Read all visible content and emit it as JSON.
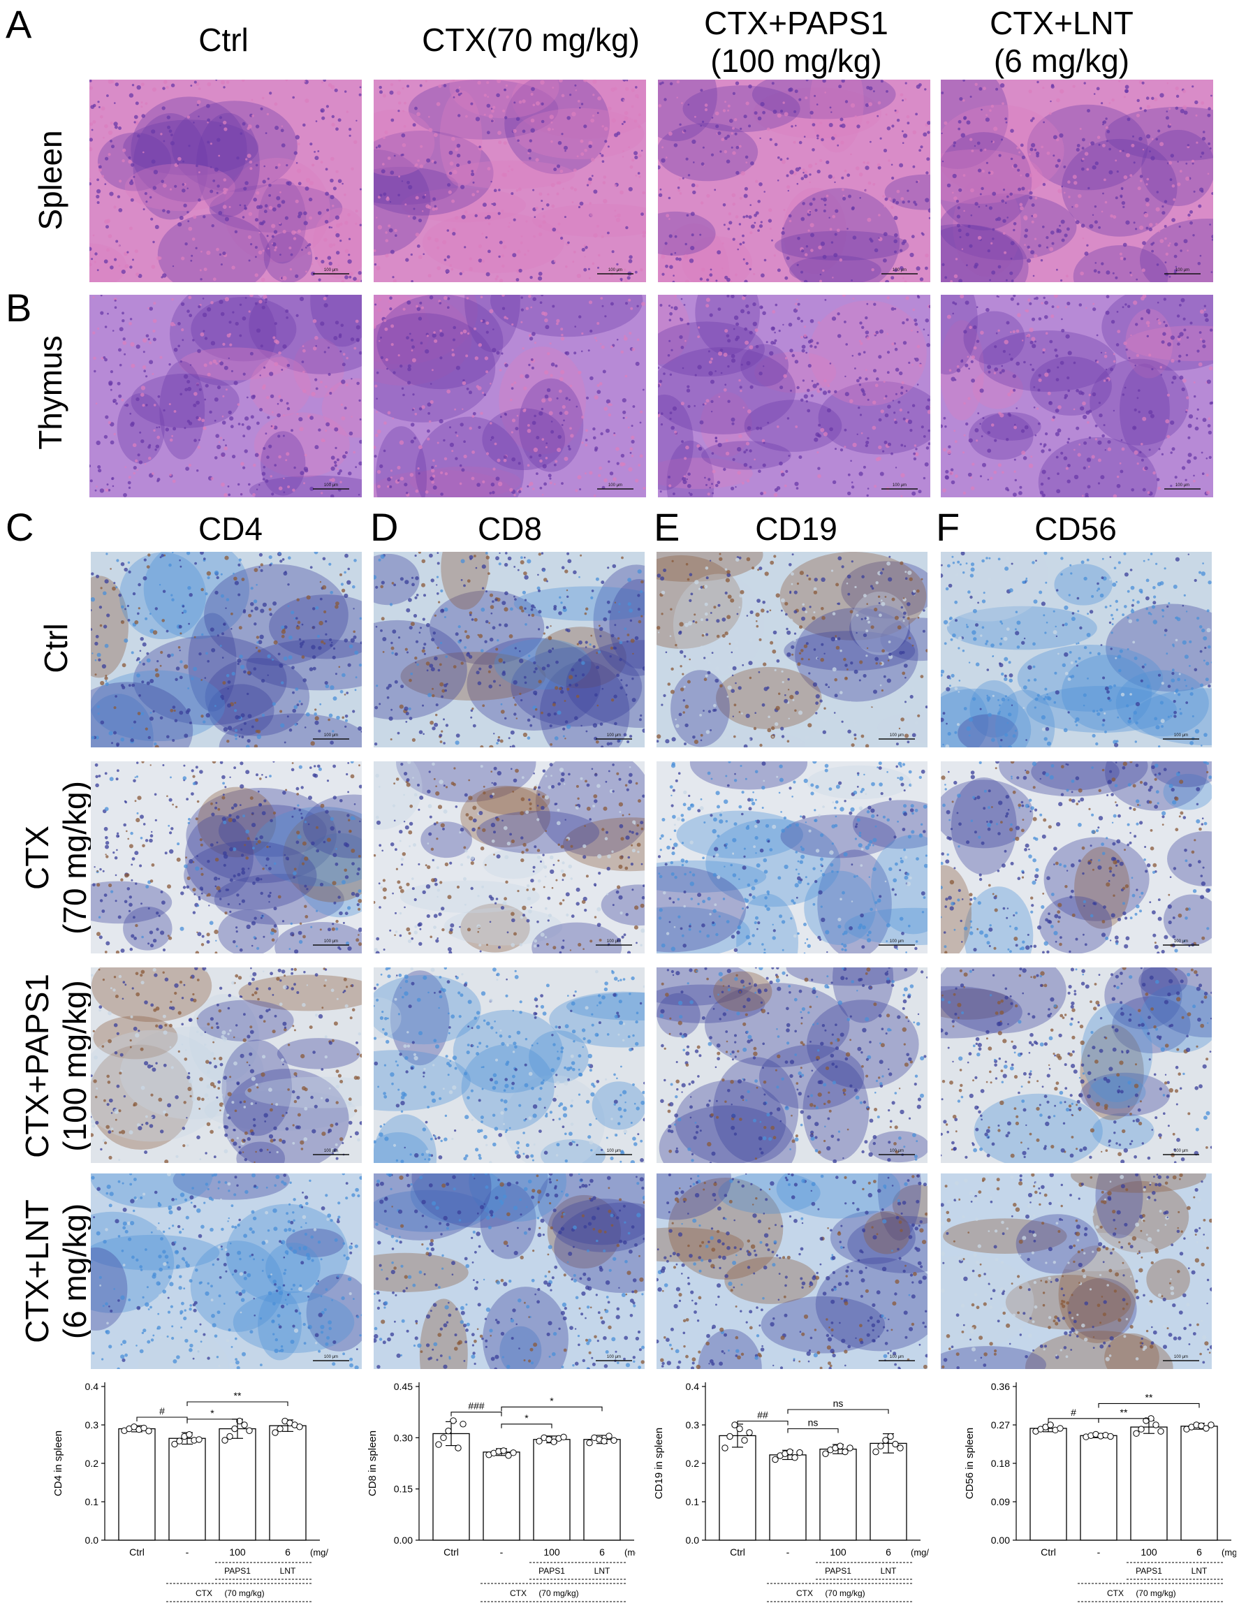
{
  "panel_letters": {
    "A": "A",
    "B": "B",
    "C": "C",
    "D": "D",
    "E": "E",
    "F": "F"
  },
  "he_columns": [
    "Ctrl",
    "CTX(70 mg/kg)",
    "CTX+PAPS1\n(100 mg/kg)",
    "CTX+LNT\n(6 mg/kg)"
  ],
  "he_rows": [
    "Spleen",
    "Thymus"
  ],
  "ihc_columns": [
    "CD4",
    "CD8",
    "CD19",
    "CD56"
  ],
  "ihc_rows": [
    "Ctrl",
    "CTX\n(70 mg/kg)",
    "CTX+PAPS1\n(100 mg/kg)",
    "CTX+LNT\n(6 mg/kg)"
  ],
  "scale_bar_label": "100 μm",
  "colors": {
    "he_pink": "#d97fbf",
    "he_purple": "#6a3aa8",
    "ihc_blue": "#4a8fd8",
    "ihc_dark": "#3a3f9a",
    "ihc_brown": "#8a5a3a",
    "ihc_light": "#c9d8e6"
  },
  "xaxis": {
    "ctrl": "Ctrl",
    "dash": "-",
    "dose_100": "100",
    "dose_6": "6",
    "unit": "(mg/kg)",
    "paps1": "PAPS1",
    "lnt": "LNT",
    "ctx": "CTX",
    "ctx_dose": "(70 mg/kg)"
  },
  "chart_data": [
    {
      "type": "bar",
      "ylabel": "CD4 in spleen",
      "ylim": [
        0,
        0.4
      ],
      "yticks": [
        "0.0",
        "0.1",
        "0.2",
        "0.3",
        "0.4"
      ],
      "categories": [
        "Ctrl",
        "-",
        "100",
        "6"
      ],
      "values": [
        0.29,
        0.265,
        0.29,
        0.298
      ],
      "errors": [
        0.008,
        0.015,
        0.025,
        0.015
      ],
      "points": [
        [
          0.285,
          0.29,
          0.295,
          0.288,
          0.292,
          0.284
        ],
        [
          0.25,
          0.258,
          0.27,
          0.275,
          0.26,
          0.262
        ],
        [
          0.26,
          0.27,
          0.29,
          0.31,
          0.3,
          0.285
        ],
        [
          0.28,
          0.29,
          0.31,
          0.305,
          0.3,
          0.295
        ]
      ],
      "significance": [
        {
          "from": 0,
          "to": 1,
          "label": "#",
          "level": 0.32
        },
        {
          "from": 1,
          "to": 2,
          "label": "*",
          "level": 0.315
        },
        {
          "from": 1,
          "to": 3,
          "label": "**",
          "level": 0.36
        }
      ]
    },
    {
      "type": "bar",
      "ylabel": "CD8 in spleen",
      "ylim": [
        0,
        0.45
      ],
      "yticks": [
        "0.00",
        "0.15",
        "0.30",
        "0.45"
      ],
      "categories": [
        "Ctrl",
        "-",
        "100",
        "6"
      ],
      "values": [
        0.312,
        0.258,
        0.295,
        0.295
      ],
      "errors": [
        0.035,
        0.01,
        0.01,
        0.012
      ],
      "points": [
        [
          0.28,
          0.3,
          0.32,
          0.35,
          0.27,
          0.34
        ],
        [
          0.25,
          0.255,
          0.26,
          0.262,
          0.248,
          0.256
        ],
        [
          0.29,
          0.3,
          0.295,
          0.288,
          0.298,
          0.302
        ],
        [
          0.285,
          0.3,
          0.295,
          0.29,
          0.305,
          0.292
        ]
      ],
      "significance": [
        {
          "from": 0,
          "to": 1,
          "label": "###",
          "level": 0.375
        },
        {
          "from": 1,
          "to": 2,
          "label": "*",
          "level": 0.34
        },
        {
          "from": 1,
          "to": 3,
          "label": "*",
          "level": 0.39
        }
      ]
    },
    {
      "type": "bar",
      "ylabel": "CD19 in spleen",
      "ylim": [
        0,
        0.4
      ],
      "yticks": [
        "0.0",
        "0.1",
        "0.2",
        "0.3",
        "0.4"
      ],
      "categories": [
        "Ctrl",
        "-",
        "100",
        "6"
      ],
      "values": [
        0.272,
        0.222,
        0.237,
        0.252
      ],
      "errors": [
        0.03,
        0.012,
        0.012,
        0.025
      ],
      "points": [
        [
          0.24,
          0.27,
          0.3,
          0.29,
          0.26,
          0.28
        ],
        [
          0.21,
          0.22,
          0.225,
          0.23,
          0.215,
          0.228
        ],
        [
          0.225,
          0.235,
          0.24,
          0.245,
          0.23,
          0.24
        ],
        [
          0.23,
          0.245,
          0.26,
          0.27,
          0.25,
          0.24
        ]
      ],
      "significance": [
        {
          "from": 0,
          "to": 1,
          "label": "##",
          "level": 0.31
        },
        {
          "from": 1,
          "to": 2,
          "label": "ns",
          "level": 0.29
        },
        {
          "from": 1,
          "to": 3,
          "label": "ns",
          "level": 0.34
        }
      ]
    },
    {
      "type": "bar",
      "ylabel": "CD56 in spleen",
      "ylim": [
        0,
        0.36
      ],
      "yticks": [
        "0.00",
        "0.09",
        "0.18",
        "0.27",
        "0.36"
      ],
      "categories": [
        "Ctrl",
        "-",
        "100",
        "6"
      ],
      "values": [
        0.262,
        0.245,
        0.265,
        0.267
      ],
      "errors": [
        0.008,
        0.005,
        0.015,
        0.007
      ],
      "points": [
        [
          0.255,
          0.26,
          0.265,
          0.27,
          0.258,
          0.262
        ],
        [
          0.242,
          0.245,
          0.248,
          0.244,
          0.246,
          0.243
        ],
        [
          0.25,
          0.26,
          0.28,
          0.285,
          0.27,
          0.255
        ],
        [
          0.26,
          0.265,
          0.27,
          0.268,
          0.262,
          0.27
        ]
      ],
      "significance": [
        {
          "from": 0,
          "to": 1,
          "label": "#",
          "level": 0.285
        },
        {
          "from": 1,
          "to": 2,
          "label": "**",
          "level": 0.285
        },
        {
          "from": 1,
          "to": 3,
          "label": "**",
          "level": 0.32
        }
      ]
    }
  ]
}
